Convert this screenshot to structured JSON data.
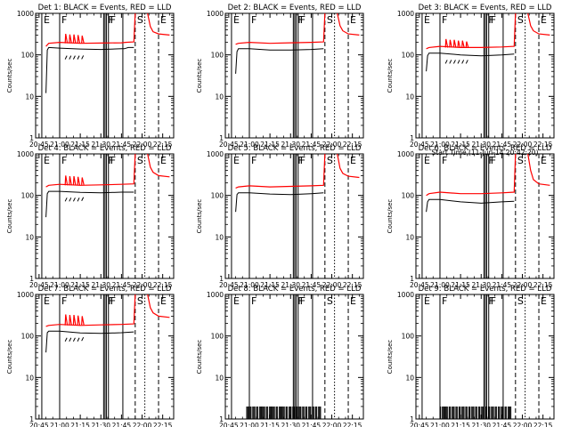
{
  "colors": {
    "events": "#000000",
    "lld": "#ff0000",
    "background": "#ffffff"
  },
  "chart_data": {
    "type": "line",
    "y_scale": "log",
    "ylim": [
      1,
      1000
    ],
    "ytick_labels": [
      "1",
      "10",
      "100",
      "1000"
    ],
    "xtick_labels": [
      "20:45",
      "21:00",
      "21:15",
      "21:30",
      "21:45",
      "22:00",
      "22:15"
    ],
    "xtick_minutes": [
      -15,
      0,
      15,
      30,
      45,
      60,
      75
    ],
    "time_range_minutes": [
      -17.5,
      83
    ],
    "ylabel": "Counts/sec",
    "xlabel": "Start Time (11-Jun-14 20:42:20)",
    "event_markers": [
      {
        "label": "E",
        "minute": -13,
        "style": "solid"
      },
      {
        "label": "F",
        "minute": 0,
        "style": "solid"
      },
      {
        "label": "F",
        "minute": 34,
        "style": "solid"
      },
      {
        "label": "F",
        "minute": 35.5,
        "style": "solid"
      },
      {
        "label": "S",
        "minute": 55,
        "style": "dashed"
      },
      {
        "label": "E",
        "minute": 72,
        "style": "dashed"
      }
    ],
    "extra_lines": [
      {
        "minute": 32,
        "style": "solid"
      },
      {
        "minute": 33,
        "style": "solid"
      },
      {
        "minute": 46,
        "style": "solid"
      },
      {
        "minute": 62,
        "style": "dotted"
      }
    ],
    "panels": [
      {
        "title": "Det 1:  BLACK = Events, RED = LLD",
        "show_xlabel": false,
        "events": [
          [
            -10,
            12
          ],
          [
            -9,
            130
          ],
          [
            -8,
            150
          ],
          [
            0,
            145
          ],
          [
            15,
            138
          ],
          [
            30,
            135
          ],
          [
            45,
            140
          ],
          [
            47,
            140
          ],
          [
            50,
            150
          ],
          [
            54,
            150
          ],
          [
            55,
            null
          ],
          [
            62,
            null
          ]
        ],
        "lld": [
          [
            -10,
            160
          ],
          [
            -8,
            190
          ],
          [
            0,
            200
          ],
          [
            15,
            190
          ],
          [
            30,
            192
          ],
          [
            45,
            195
          ],
          [
            48,
            200
          ],
          [
            54,
            205
          ],
          [
            55,
            1000
          ],
          [
            62,
            null
          ],
          [
            64,
            1000
          ],
          [
            66,
            480
          ],
          [
            68,
            360
          ],
          [
            72,
            320
          ],
          [
            80,
            300
          ]
        ],
        "lld_spikes": [
          [
            4,
            320
          ],
          [
            7,
            310
          ],
          [
            10,
            310
          ],
          [
            13,
            300
          ],
          [
            16,
            290
          ]
        ]
      },
      {
        "title": "Det 2:  BLACK = Events, RED = LLD",
        "show_xlabel": false,
        "events": [
          [
            -10,
            35
          ],
          [
            -9,
            120
          ],
          [
            -8,
            140
          ],
          [
            0,
            140
          ],
          [
            15,
            130
          ],
          [
            30,
            130
          ],
          [
            45,
            135
          ],
          [
            54,
            140
          ],
          [
            55,
            null
          ],
          [
            62,
            null
          ]
        ],
        "lld": [
          [
            -10,
            180
          ],
          [
            -8,
            190
          ],
          [
            0,
            200
          ],
          [
            15,
            190
          ],
          [
            30,
            195
          ],
          [
            45,
            200
          ],
          [
            54,
            205
          ],
          [
            55,
            1000
          ],
          [
            62,
            null
          ],
          [
            64,
            1000
          ],
          [
            66,
            500
          ],
          [
            68,
            380
          ],
          [
            72,
            320
          ],
          [
            80,
            300
          ]
        ],
        "lld_spikes": []
      },
      {
        "title": "Det 3:  BLACK = Events, RED = LLD",
        "show_xlabel": true,
        "events": [
          [
            -10,
            40
          ],
          [
            -9,
            95
          ],
          [
            -8,
            110
          ],
          [
            0,
            110
          ],
          [
            15,
            100
          ],
          [
            30,
            95
          ],
          [
            45,
            100
          ],
          [
            54,
            105
          ],
          [
            55,
            null
          ],
          [
            62,
            null
          ]
        ],
        "lld": [
          [
            -10,
            140
          ],
          [
            -8,
            150
          ],
          [
            0,
            160
          ],
          [
            15,
            150
          ],
          [
            30,
            150
          ],
          [
            45,
            155
          ],
          [
            54,
            160
          ],
          [
            55,
            1000
          ],
          [
            62,
            null
          ],
          [
            64,
            1000
          ],
          [
            66,
            500
          ],
          [
            68,
            380
          ],
          [
            72,
            320
          ],
          [
            80,
            300
          ]
        ],
        "lld_spikes": [
          [
            4,
            240
          ],
          [
            7,
            230
          ],
          [
            10,
            230
          ],
          [
            13,
            220
          ],
          [
            16,
            220
          ],
          [
            19,
            210
          ]
        ]
      },
      {
        "title": "Det 4:  BLACK = Events, RED = LLD",
        "show_xlabel": false,
        "events": [
          [
            -10,
            30
          ],
          [
            -9,
            110
          ],
          [
            -8,
            125
          ],
          [
            0,
            125
          ],
          [
            15,
            118
          ],
          [
            30,
            115
          ],
          [
            45,
            120
          ],
          [
            54,
            120
          ],
          [
            55,
            null
          ],
          [
            62,
            null
          ]
        ],
        "lld": [
          [
            -10,
            160
          ],
          [
            -8,
            175
          ],
          [
            0,
            185
          ],
          [
            15,
            175
          ],
          [
            30,
            180
          ],
          [
            45,
            185
          ],
          [
            54,
            190
          ],
          [
            55,
            1000
          ],
          [
            62,
            null
          ],
          [
            64,
            1000
          ],
          [
            66,
            480
          ],
          [
            68,
            360
          ],
          [
            72,
            300
          ],
          [
            80,
            280
          ]
        ],
        "lld_spikes": [
          [
            4,
            300
          ],
          [
            7,
            290
          ],
          [
            10,
            290
          ],
          [
            13,
            280
          ],
          [
            16,
            270
          ]
        ]
      },
      {
        "title": "Det 5:  BLACK = Events, RED = LLD",
        "show_xlabel": false,
        "events": [
          [
            -10,
            40
          ],
          [
            -9,
            105
          ],
          [
            -8,
            115
          ],
          [
            0,
            115
          ],
          [
            15,
            108
          ],
          [
            30,
            105
          ],
          [
            45,
            110
          ],
          [
            54,
            115
          ],
          [
            55,
            null
          ],
          [
            62,
            null
          ]
        ],
        "lld": [
          [
            -10,
            150
          ],
          [
            -8,
            160
          ],
          [
            0,
            170
          ],
          [
            15,
            160
          ],
          [
            30,
            165
          ],
          [
            45,
            170
          ],
          [
            54,
            175
          ],
          [
            55,
            1000
          ],
          [
            62,
            null
          ],
          [
            64,
            1000
          ],
          [
            66,
            450
          ],
          [
            68,
            340
          ],
          [
            72,
            290
          ],
          [
            80,
            270
          ]
        ],
        "lld_spikes": []
      },
      {
        "title": "Det 6:  BLACK = Events, RED = LLD",
        "show_xlabel": false,
        "events": [
          [
            -10,
            40
          ],
          [
            -9,
            70
          ],
          [
            -8,
            80
          ],
          [
            0,
            80
          ],
          [
            15,
            70
          ],
          [
            30,
            65
          ],
          [
            45,
            70
          ],
          [
            54,
            72
          ],
          [
            55,
            null
          ],
          [
            62,
            null
          ]
        ],
        "lld": [
          [
            -10,
            100
          ],
          [
            -8,
            110
          ],
          [
            0,
            120
          ],
          [
            15,
            110
          ],
          [
            30,
            110
          ],
          [
            45,
            115
          ],
          [
            54,
            120
          ],
          [
            55,
            1000
          ],
          [
            62,
            null
          ],
          [
            64,
            1000
          ],
          [
            66,
            400
          ],
          [
            68,
            240
          ],
          [
            72,
            190
          ],
          [
            80,
            175
          ]
        ],
        "lld_spikes": []
      },
      {
        "title": "Det 7:  BLACK = Events, RED = LLD",
        "show_xlabel": true,
        "events": [
          [
            -10,
            40
          ],
          [
            -9,
            120
          ],
          [
            -8,
            130
          ],
          [
            0,
            130
          ],
          [
            15,
            118
          ],
          [
            30,
            115
          ],
          [
            45,
            120
          ],
          [
            54,
            125
          ],
          [
            55,
            null
          ],
          [
            62,
            null
          ]
        ],
        "lld": [
          [
            -10,
            170
          ],
          [
            -8,
            180
          ],
          [
            0,
            190
          ],
          [
            15,
            180
          ],
          [
            30,
            185
          ],
          [
            45,
            190
          ],
          [
            54,
            195
          ],
          [
            55,
            1000
          ],
          [
            62,
            null
          ],
          [
            64,
            1000
          ],
          [
            66,
            480
          ],
          [
            68,
            360
          ],
          [
            72,
            300
          ],
          [
            80,
            280
          ]
        ],
        "lld_spikes": [
          [
            4,
            330
          ],
          [
            7,
            320
          ],
          [
            10,
            320
          ],
          [
            13,
            310
          ],
          [
            16,
            300
          ]
        ]
      },
      {
        "title": "Det 8:  BLACK = Events, RED = LLD",
        "show_xlabel": true,
        "events": [],
        "lld": [],
        "lld_spikes": [],
        "noise_bars": {
          "from": -2,
          "to": 52,
          "height": 2
        }
      },
      {
        "title": "Det 9:  BLACK = Events, RED = LLD",
        "show_xlabel": true,
        "events": [],
        "lld": [],
        "lld_spikes": [],
        "noise_bars": {
          "from": 0,
          "to": 52,
          "height": 2
        }
      }
    ]
  }
}
